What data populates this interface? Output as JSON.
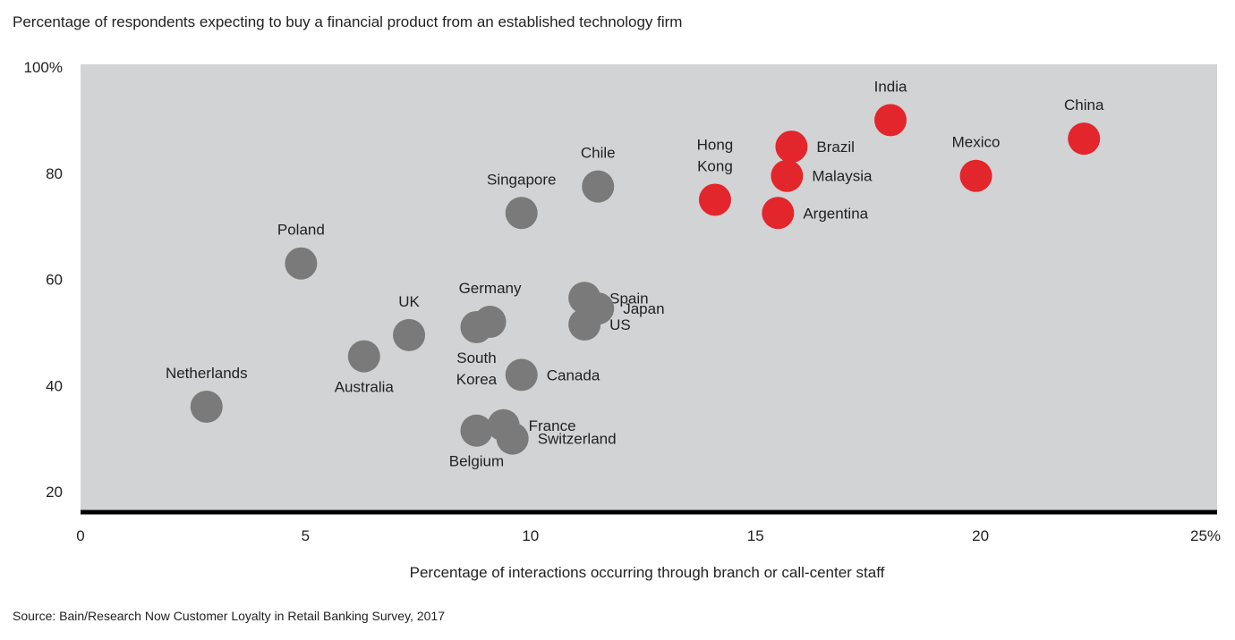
{
  "chart_data": {
    "type": "scatter",
    "title": "Percentage of respondents expecting to buy a financial product from an established technology firm",
    "xlabel": "Percentage of interactions occurring through branch or call-center staff",
    "ylabel": "",
    "xlim": [
      0,
      25
    ],
    "ylim": [
      15,
      100
    ],
    "x_ticks": [
      "0",
      "5",
      "10",
      "15",
      "20",
      "25%"
    ],
    "y_ticks": [
      "20",
      "40",
      "60",
      "80",
      "100%"
    ],
    "grid": false,
    "colors": {
      "group_a": "#7a7a7a",
      "group_b": "#e3262b",
      "plot_bg": "#d2d3d5"
    },
    "points": [
      {
        "label": "Netherlands",
        "x": 2.8,
        "y": 36,
        "group": "group_a",
        "label_pos": "above"
      },
      {
        "label": "Poland",
        "x": 4.9,
        "y": 63,
        "group": "group_a",
        "label_pos": "above"
      },
      {
        "label": "Australia",
        "x": 6.3,
        "y": 45.5,
        "group": "group_a",
        "label_pos": "below"
      },
      {
        "label": "UK",
        "x": 7.3,
        "y": 49.5,
        "group": "group_a",
        "label_pos": "above"
      },
      {
        "label": "Germany",
        "x": 9.1,
        "y": 52,
        "group": "group_a",
        "label_pos": "above"
      },
      {
        "label": "South Korea",
        "x": 8.8,
        "y": 51,
        "group": "group_a",
        "label_pos": "below"
      },
      {
        "label": "Canada",
        "x": 9.8,
        "y": 42,
        "group": "group_a",
        "label_pos": "right"
      },
      {
        "label": "Singapore",
        "x": 9.8,
        "y": 72.5,
        "group": "group_a",
        "label_pos": "above"
      },
      {
        "label": "Chile",
        "x": 11.5,
        "y": 77.5,
        "group": "group_a",
        "label_pos": "above"
      },
      {
        "label": "Spain",
        "x": 11.2,
        "y": 56.5,
        "group": "group_a",
        "label_pos": "right"
      },
      {
        "label": "Japan",
        "x": 11.5,
        "y": 54.5,
        "group": "group_a",
        "label_pos": "right"
      },
      {
        "label": "US",
        "x": 11.2,
        "y": 51.5,
        "group": "group_a",
        "label_pos": "right"
      },
      {
        "label": "France",
        "x": 9.4,
        "y": 32.5,
        "group": "group_a",
        "label_pos": "right"
      },
      {
        "label": "Switzerland",
        "x": 9.6,
        "y": 30,
        "group": "group_a",
        "label_pos": "right"
      },
      {
        "label": "Belgium",
        "x": 8.8,
        "y": 31.5,
        "group": "group_a",
        "label_pos": "below"
      },
      {
        "label": "Hong Kong",
        "x": 14.1,
        "y": 75,
        "group": "group_b",
        "label_pos": "above"
      },
      {
        "label": "Brazil",
        "x": 15.8,
        "y": 85,
        "group": "group_b",
        "label_pos": "right"
      },
      {
        "label": "Malaysia",
        "x": 15.7,
        "y": 79.5,
        "group": "group_b",
        "label_pos": "right"
      },
      {
        "label": "Argentina",
        "x": 15.5,
        "y": 72.5,
        "group": "group_b",
        "label_pos": "right"
      },
      {
        "label": "India",
        "x": 18.0,
        "y": 90,
        "group": "group_b",
        "label_pos": "above"
      },
      {
        "label": "Mexico",
        "x": 19.9,
        "y": 79.5,
        "group": "group_b",
        "label_pos": "above"
      },
      {
        "label": "China",
        "x": 22.3,
        "y": 86.5,
        "group": "group_b",
        "label_pos": "above"
      }
    ]
  },
  "source": "Source: Bain/Research Now Customer Loyalty in Retail Banking Survey, 2017"
}
